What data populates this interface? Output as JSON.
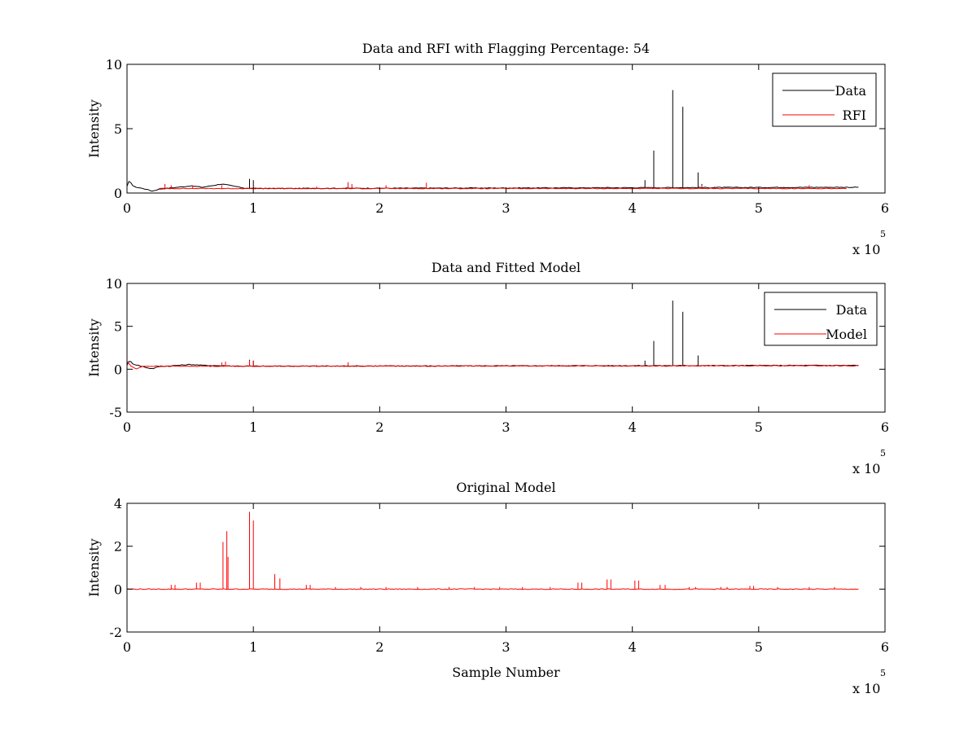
{
  "figure": {
    "background": "#ffffff"
  },
  "chart_data": [
    {
      "type": "line",
      "title": "Data and RFI with Flagging Percentage: 54",
      "xlabel": "",
      "ylabel": "Intensity",
      "xlim": [
        0,
        600000
      ],
      "ylim": [
        0,
        10
      ],
      "xticks": [
        0,
        1,
        2,
        3,
        4,
        5,
        6
      ],
      "yticks": [
        0,
        5,
        10
      ],
      "x_exponent": {
        "base": "x 10",
        "power": "5"
      },
      "grid": false,
      "legend": {
        "placement": "top-right",
        "entries": [
          "Data",
          "RFI"
        ]
      },
      "series": [
        {
          "name": "Data",
          "color": "#000000",
          "baseline": 0.35,
          "points": [
            [
              0,
              0.5
            ],
            [
              2000,
              1.0
            ],
            [
              5000,
              0.5
            ],
            [
              15000,
              0.3
            ],
            [
              20000,
              0.15
            ],
            [
              25000,
              0.3
            ],
            [
              50000,
              0.55
            ],
            [
              60000,
              0.45
            ],
            [
              75000,
              0.7
            ],
            [
              95000,
              0.35
            ],
            [
              580000,
              0.45
            ]
          ],
          "spikes": [
            [
              97000,
              1.1
            ],
            [
              100000,
              1.0
            ],
            [
              410000,
              1.0
            ],
            [
              417000,
              3.3
            ],
            [
              432000,
              8.0
            ],
            [
              440000,
              6.7
            ],
            [
              452000,
              1.6
            ],
            [
              455000,
              0.7
            ]
          ]
        },
        {
          "name": "RFI",
          "color": "#ff0000",
          "baseline": 0.35,
          "x_range": [
            25000,
            570000
          ],
          "spikes": [
            [
              30000,
              0.7
            ],
            [
              35000,
              0.6
            ],
            [
              52000,
              0.6
            ],
            [
              75000,
              0.6
            ],
            [
              100000,
              0.5
            ],
            [
              150000,
              0.5
            ],
            [
              175000,
              0.85
            ],
            [
              178000,
              0.7
            ],
            [
              205000,
              0.6
            ],
            [
              237000,
              0.8
            ],
            [
              380000,
              0.5
            ],
            [
              415000,
              0.5
            ],
            [
              455000,
              0.6
            ],
            [
              465000,
              0.5
            ],
            [
              520000,
              0.5
            ],
            [
              540000,
              0.6
            ],
            [
              555000,
              0.5
            ]
          ]
        }
      ]
    },
    {
      "type": "line",
      "title": "Data and Fitted Model",
      "xlabel": "",
      "ylabel": "Intensity",
      "xlim": [
        0,
        600000
      ],
      "ylim": [
        -5,
        10
      ],
      "xticks": [
        0,
        1,
        2,
        3,
        4,
        5,
        6
      ],
      "yticks": [
        -5,
        0,
        5,
        10
      ],
      "x_exponent": {
        "base": "x 10",
        "power": "5"
      },
      "grid": false,
      "legend": {
        "placement": "top-right",
        "entries": [
          "Data",
          "Model"
        ]
      },
      "series": [
        {
          "name": "Data",
          "color": "#000000",
          "baseline": 0.35,
          "points": [
            [
              0,
              0.5
            ],
            [
              2000,
              1.0
            ],
            [
              5000,
              0.6
            ],
            [
              15000,
              0.2
            ],
            [
              20000,
              0.05
            ],
            [
              25000,
              0.3
            ],
            [
              50000,
              0.55
            ],
            [
              60000,
              0.45
            ],
            [
              95000,
              0.35
            ],
            [
              580000,
              0.45
            ]
          ],
          "spikes": [
            [
              97000,
              1.1
            ],
            [
              100000,
              1.0
            ],
            [
              410000,
              1.0
            ],
            [
              417000,
              3.3
            ],
            [
              432000,
              8.0
            ],
            [
              440000,
              6.7
            ],
            [
              452000,
              1.6
            ]
          ]
        },
        {
          "name": "Model",
          "color": "#ff0000",
          "baseline": 0.4,
          "points": [
            [
              0,
              0.9
            ],
            [
              3000,
              0.4
            ],
            [
              7000,
              0.0
            ],
            [
              12000,
              0.35
            ],
            [
              580000,
              0.4
            ]
          ],
          "spikes": [
            [
              75000,
              0.8
            ],
            [
              78000,
              0.9
            ],
            [
              97000,
              1.0
            ],
            [
              100000,
              1.0
            ],
            [
              150000,
              0.5
            ],
            [
              175000,
              0.8
            ],
            [
              205000,
              0.5
            ]
          ]
        }
      ]
    },
    {
      "type": "line",
      "title": "Original Model",
      "xlabel": "Sample Number",
      "ylabel": "Intensity",
      "xlim": [
        0,
        600000
      ],
      "ylim": [
        -2,
        4
      ],
      "xticks": [
        0,
        1,
        2,
        3,
        4,
        5,
        6
      ],
      "yticks": [
        -2,
        0,
        2,
        4
      ],
      "x_exponent": {
        "base": "x 10",
        "power": "5"
      },
      "grid": false,
      "series": [
        {
          "color": "#ff0000",
          "baseline": 0.0,
          "x_range": [
            0,
            580000
          ],
          "spikes": [
            [
              35000,
              0.2
            ],
            [
              38000,
              0.2
            ],
            [
              55000,
              0.3
            ],
            [
              58000,
              0.3
            ],
            [
              76000,
              2.2
            ],
            [
              79000,
              2.7
            ],
            [
              80000,
              1.5
            ],
            [
              97000,
              3.6
            ],
            [
              100000,
              3.2
            ],
            [
              117000,
              0.7
            ],
            [
              121000,
              0.5
            ],
            [
              142000,
              0.2
            ],
            [
              145000,
              0.2
            ],
            [
              165000,
              0.1
            ],
            [
              185000,
              0.1
            ],
            [
              205000,
              0.1
            ],
            [
              230000,
              0.1
            ],
            [
              255000,
              0.1
            ],
            [
              275000,
              0.1
            ],
            [
              295000,
              0.1
            ],
            [
              313000,
              0.1
            ],
            [
              335000,
              0.1
            ],
            [
              357000,
              0.3
            ],
            [
              360000,
              0.3
            ],
            [
              380000,
              0.45
            ],
            [
              383000,
              0.45
            ],
            [
              402000,
              0.4
            ],
            [
              405000,
              0.4
            ],
            [
              422000,
              0.2
            ],
            [
              426000,
              0.2
            ],
            [
              445000,
              0.1
            ],
            [
              450000,
              0.1
            ],
            [
              470000,
              0.1
            ],
            [
              475000,
              0.1
            ],
            [
              493000,
              0.15
            ],
            [
              496000,
              0.15
            ],
            [
              515000,
              0.1
            ],
            [
              540000,
              0.1
            ],
            [
              560000,
              0.1
            ]
          ]
        }
      ]
    }
  ]
}
